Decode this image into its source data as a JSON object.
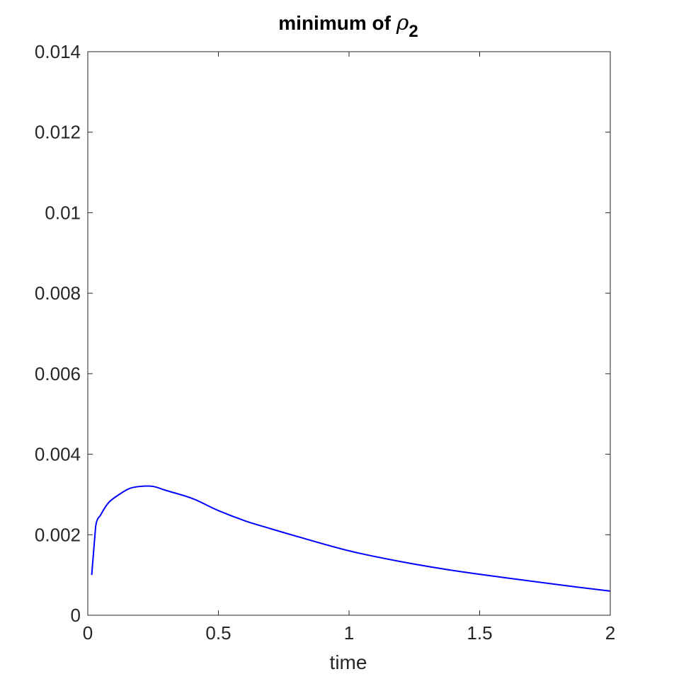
{
  "chart_data": {
    "type": "line",
    "title": {
      "prefix": "minimum of ",
      "symbol": "ρ",
      "subscript": "2"
    },
    "xlabel": "time",
    "ylabel": "",
    "xlim": [
      0,
      2
    ],
    "ylim": [
      0,
      0.014
    ],
    "xticks": [
      0,
      0.5,
      1,
      1.5,
      2
    ],
    "xtick_labels": [
      "0",
      "0.5",
      "1",
      "1.5",
      "2"
    ],
    "yticks": [
      0,
      0.002,
      0.004,
      0.006,
      0.008,
      0.01,
      0.012,
      0.014
    ],
    "ytick_labels": [
      "0",
      "0.002",
      "0.004",
      "0.006",
      "0.008",
      "0.01",
      "0.012",
      "0.014"
    ],
    "grid": false,
    "box": true,
    "series": [
      {
        "color": "#0000ff",
        "x": [
          0.015,
          0.03,
          0.05,
          0.08,
          0.12,
          0.16,
          0.2,
          0.25,
          0.3,
          0.4,
          0.5,
          0.6,
          0.7,
          0.8,
          1.0,
          1.2,
          1.4,
          1.6,
          1.8,
          2.0
        ],
        "y": [
          0.001,
          0.0022,
          0.0025,
          0.0028,
          0.003,
          0.00315,
          0.0032,
          0.0032,
          0.0031,
          0.0029,
          0.0026,
          0.00235,
          0.00215,
          0.00196,
          0.0016,
          0.00133,
          0.00111,
          0.00093,
          0.00076,
          0.0006
        ]
      }
    ]
  }
}
